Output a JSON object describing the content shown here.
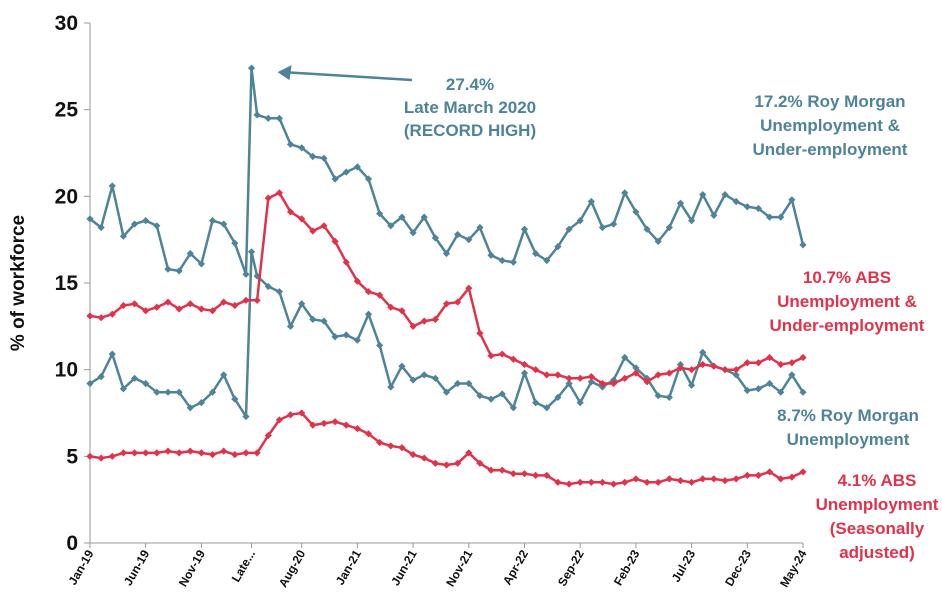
{
  "chart_data": {
    "type": "line",
    "ylabel": "% of workforce",
    "ylim": [
      0,
      30
    ],
    "yticks": [
      "0",
      "5",
      "10",
      "15",
      "20",
      "25",
      "30"
    ],
    "grid": false,
    "xtick_labels": [
      {
        "label": "Jan-19",
        "x": 0
      },
      {
        "label": "Jun-19",
        "x": 5
      },
      {
        "label": "Nov-19",
        "x": 10
      },
      {
        "label": "Late...",
        "x": 14.5
      },
      {
        "label": "Aug-20",
        "x": 19
      },
      {
        "label": "Jan-21",
        "x": 24
      },
      {
        "label": "Jun-21",
        "x": 29
      },
      {
        "label": "Nov-21",
        "x": 34
      },
      {
        "label": "Apr-22",
        "x": 39
      },
      {
        "label": "Sep-22",
        "x": 44
      },
      {
        "label": "Feb-23",
        "x": 49
      },
      {
        "label": "Jul-23",
        "x": 54
      },
      {
        "label": "Dec-23",
        "x": 59
      },
      {
        "label": "May-24",
        "x": 64
      }
    ],
    "colors": {
      "roy_morgan": "#4E8398",
      "abs": "#E0324A"
    },
    "series": [
      {
        "key": "rm_underemp",
        "color": "#4E8398",
        "points": [
          [
            0,
            18.7
          ],
          [
            1,
            18.2
          ],
          [
            2,
            20.6
          ],
          [
            3,
            17.7
          ],
          [
            4,
            18.4
          ],
          [
            5,
            18.6
          ],
          [
            6,
            18.3
          ],
          [
            7,
            15.8
          ],
          [
            8,
            15.7
          ],
          [
            9,
            16.7
          ],
          [
            10,
            16.1
          ],
          [
            11,
            18.6
          ],
          [
            12,
            18.4
          ],
          [
            13,
            17.3
          ],
          [
            14,
            15.5
          ],
          [
            14.5,
            27.4
          ],
          [
            15,
            24.7
          ],
          [
            16,
            24.5
          ],
          [
            17,
            24.5
          ],
          [
            18,
            23.0
          ],
          [
            19,
            22.8
          ],
          [
            20,
            22.3
          ],
          [
            21,
            22.2
          ],
          [
            22,
            21.0
          ],
          [
            23,
            21.4
          ],
          [
            24,
            21.7
          ],
          [
            25,
            21.0
          ],
          [
            26,
            19.0
          ],
          [
            27,
            18.3
          ],
          [
            28,
            18.8
          ],
          [
            29,
            17.9
          ],
          [
            30,
            18.8
          ],
          [
            31,
            17.6
          ],
          [
            32,
            16.7
          ],
          [
            33,
            17.8
          ],
          [
            34,
            17.5
          ],
          [
            35,
            18.2
          ],
          [
            36,
            16.6
          ],
          [
            37,
            16.3
          ],
          [
            38,
            16.2
          ],
          [
            39,
            18.1
          ],
          [
            40,
            16.7
          ],
          [
            41,
            16.3
          ],
          [
            42,
            17.1
          ],
          [
            43,
            18.1
          ],
          [
            44,
            18.6
          ],
          [
            45,
            19.7
          ],
          [
            46,
            18.2
          ],
          [
            47,
            18.4
          ],
          [
            48,
            20.2
          ],
          [
            49,
            19.1
          ],
          [
            50,
            18.1
          ],
          [
            51,
            17.4
          ],
          [
            52,
            18.2
          ],
          [
            53,
            19.6
          ],
          [
            54,
            18.6
          ],
          [
            55,
            20.1
          ],
          [
            56,
            18.9
          ],
          [
            57,
            20.1
          ],
          [
            58,
            19.7
          ],
          [
            59,
            19.4
          ],
          [
            60,
            19.3
          ],
          [
            61,
            18.8
          ],
          [
            62,
            18.8
          ],
          [
            63,
            19.8
          ],
          [
            64,
            17.2
          ]
        ]
      },
      {
        "key": "rm_unemp",
        "color": "#4E8398",
        "points": [
          [
            0,
            9.2
          ],
          [
            1,
            9.6
          ],
          [
            2,
            10.9
          ],
          [
            3,
            8.9
          ],
          [
            4,
            9.5
          ],
          [
            5,
            9.2
          ],
          [
            6,
            8.7
          ],
          [
            7,
            8.7
          ],
          [
            8,
            8.7
          ],
          [
            9,
            7.8
          ],
          [
            10,
            8.1
          ],
          [
            11,
            8.7
          ],
          [
            12,
            9.7
          ],
          [
            13,
            8.3
          ],
          [
            14,
            7.3
          ],
          [
            14.5,
            16.8
          ],
          [
            15,
            15.4
          ],
          [
            16,
            14.8
          ],
          [
            17,
            14.5
          ],
          [
            18,
            12.5
          ],
          [
            19,
            13.8
          ],
          [
            20,
            12.9
          ],
          [
            21,
            12.8
          ],
          [
            22,
            11.9
          ],
          [
            23,
            12.0
          ],
          [
            24,
            11.7
          ],
          [
            25,
            13.2
          ],
          [
            26,
            11.4
          ],
          [
            27,
            9.0
          ],
          [
            28,
            10.2
          ],
          [
            29,
            9.4
          ],
          [
            30,
            9.7
          ],
          [
            31,
            9.5
          ],
          [
            32,
            8.7
          ],
          [
            33,
            9.2
          ],
          [
            34,
            9.2
          ],
          [
            35,
            8.5
          ],
          [
            36,
            8.3
          ],
          [
            37,
            8.6
          ],
          [
            38,
            7.8
          ],
          [
            39,
            9.8
          ],
          [
            40,
            8.1
          ],
          [
            41,
            7.8
          ],
          [
            42,
            8.4
          ],
          [
            43,
            9.2
          ],
          [
            44,
            8.1
          ],
          [
            45,
            9.3
          ],
          [
            46,
            9.0
          ],
          [
            47,
            9.4
          ],
          [
            48,
            10.7
          ],
          [
            49,
            10.1
          ],
          [
            50,
            9.5
          ],
          [
            51,
            8.5
          ],
          [
            52,
            8.4
          ],
          [
            53,
            10.3
          ],
          [
            54,
            9.1
          ],
          [
            55,
            11.0
          ],
          [
            56,
            10.2
          ],
          [
            57,
            10.0
          ],
          [
            58,
            9.7
          ],
          [
            59,
            8.8
          ],
          [
            60,
            8.9
          ],
          [
            61,
            9.2
          ],
          [
            62,
            8.7
          ],
          [
            63,
            9.7
          ],
          [
            64,
            8.7
          ]
        ]
      },
      {
        "key": "abs_underemp",
        "color": "#E0324A",
        "points": [
          [
            0,
            13.1
          ],
          [
            1,
            13.0
          ],
          [
            2,
            13.2
          ],
          [
            3,
            13.7
          ],
          [
            4,
            13.8
          ],
          [
            5,
            13.4
          ],
          [
            6,
            13.6
          ],
          [
            7,
            13.9
          ],
          [
            8,
            13.5
          ],
          [
            9,
            13.8
          ],
          [
            10,
            13.5
          ],
          [
            11,
            13.4
          ],
          [
            12,
            13.9
          ],
          [
            13,
            13.7
          ],
          [
            14,
            14.0
          ],
          [
            15,
            14.0
          ],
          [
            16,
            19.9
          ],
          [
            17,
            20.2
          ],
          [
            18,
            19.1
          ],
          [
            19,
            18.7
          ],
          [
            20,
            18.0
          ],
          [
            21,
            18.3
          ],
          [
            22,
            17.4
          ],
          [
            23,
            16.2
          ],
          [
            24,
            15.1
          ],
          [
            25,
            14.5
          ],
          [
            26,
            14.3
          ],
          [
            27,
            13.6
          ],
          [
            28,
            13.4
          ],
          [
            29,
            12.5
          ],
          [
            30,
            12.8
          ],
          [
            31,
            12.9
          ],
          [
            32,
            13.8
          ],
          [
            33,
            13.9
          ],
          [
            34,
            14.7
          ],
          [
            35,
            12.1
          ],
          [
            36,
            10.8
          ],
          [
            37,
            10.9
          ],
          [
            38,
            10.6
          ],
          [
            39,
            10.3
          ],
          [
            40,
            10.0
          ],
          [
            41,
            9.7
          ],
          [
            42,
            9.7
          ],
          [
            43,
            9.5
          ],
          [
            44,
            9.5
          ],
          [
            45,
            9.6
          ],
          [
            46,
            9.2
          ],
          [
            47,
            9.2
          ],
          [
            48,
            9.5
          ],
          [
            49,
            9.8
          ],
          [
            50,
            9.3
          ],
          [
            51,
            9.7
          ],
          [
            52,
            9.8
          ],
          [
            53,
            10.1
          ],
          [
            54,
            10.0
          ],
          [
            55,
            10.3
          ],
          [
            56,
            10.2
          ],
          [
            57,
            10.0
          ],
          [
            58,
            10.0
          ],
          [
            59,
            10.4
          ],
          [
            60,
            10.4
          ],
          [
            61,
            10.7
          ],
          [
            62,
            10.3
          ],
          [
            63,
            10.4
          ],
          [
            64,
            10.7
          ]
        ]
      },
      {
        "key": "abs_unemp",
        "color": "#E0324A",
        "points": [
          [
            0,
            5.0
          ],
          [
            1,
            4.9
          ],
          [
            2,
            5.0
          ],
          [
            3,
            5.2
          ],
          [
            4,
            5.2
          ],
          [
            5,
            5.2
          ],
          [
            6,
            5.2
          ],
          [
            7,
            5.3
          ],
          [
            8,
            5.2
          ],
          [
            9,
            5.3
          ],
          [
            10,
            5.2
          ],
          [
            11,
            5.1
          ],
          [
            12,
            5.3
          ],
          [
            13,
            5.1
          ],
          [
            14,
            5.2
          ],
          [
            15,
            5.2
          ],
          [
            16,
            6.2
          ],
          [
            17,
            7.1
          ],
          [
            18,
            7.4
          ],
          [
            19,
            7.5
          ],
          [
            20,
            6.8
          ],
          [
            21,
            6.9
          ],
          [
            22,
            7.0
          ],
          [
            23,
            6.8
          ],
          [
            24,
            6.6
          ],
          [
            25,
            6.3
          ],
          [
            26,
            5.8
          ],
          [
            27,
            5.6
          ],
          [
            28,
            5.5
          ],
          [
            29,
            5.1
          ],
          [
            30,
            4.9
          ],
          [
            31,
            4.6
          ],
          [
            32,
            4.5
          ],
          [
            33,
            4.6
          ],
          [
            34,
            5.2
          ],
          [
            35,
            4.6
          ],
          [
            36,
            4.2
          ],
          [
            37,
            4.2
          ],
          [
            38,
            4.0
          ],
          [
            39,
            4.0
          ],
          [
            40,
            3.9
          ],
          [
            41,
            3.9
          ],
          [
            42,
            3.5
          ],
          [
            43,
            3.4
          ],
          [
            44,
            3.5
          ],
          [
            45,
            3.5
          ],
          [
            46,
            3.5
          ],
          [
            47,
            3.4
          ],
          [
            48,
            3.5
          ],
          [
            49,
            3.7
          ],
          [
            50,
            3.5
          ],
          [
            51,
            3.5
          ],
          [
            52,
            3.7
          ],
          [
            53,
            3.6
          ],
          [
            54,
            3.5
          ],
          [
            55,
            3.7
          ],
          [
            56,
            3.7
          ],
          [
            57,
            3.6
          ],
          [
            58,
            3.7
          ],
          [
            59,
            3.9
          ],
          [
            60,
            3.9
          ],
          [
            61,
            4.1
          ],
          [
            62,
            3.7
          ],
          [
            63,
            3.8
          ],
          [
            64,
            4.1
          ]
        ]
      }
    ],
    "annotations": {
      "peak": {
        "lines": [
          "27.4%",
          "Late March 2020",
          "(RECORD HIGH)"
        ],
        "color": "#4E8398",
        "arrow_to": [
          14.5,
          27.4
        ]
      },
      "rm_underemp": {
        "lines": [
          "17.2% Roy Morgan",
          "Unemployment &",
          "Under-employment"
        ],
        "color": "#4E8398"
      },
      "abs_underemp": {
        "lines": [
          "10.7% ABS",
          "Unemployment &",
          "Under-employment"
        ],
        "color": "#E0324A"
      },
      "rm_unemp": {
        "lines": [
          "8.7% Roy Morgan",
          "Unemployment"
        ],
        "color": "#4E8398"
      },
      "abs_unemp": {
        "lines": [
          "4.1% ABS",
          "Unemployment",
          "(Seasonally",
          "adjusted)"
        ],
        "color": "#E0324A"
      }
    }
  }
}
